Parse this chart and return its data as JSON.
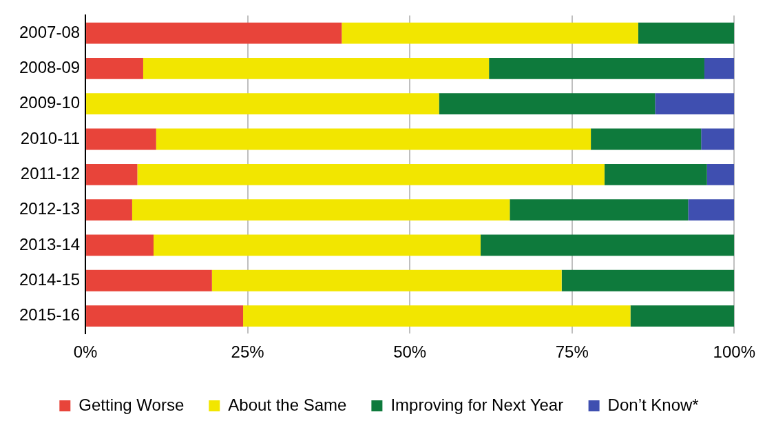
{
  "chart_data": {
    "type": "bar",
    "orientation": "horizontal",
    "stacked": true,
    "categories": [
      "2007-08",
      "2008-09",
      "2009-10",
      "2010-11",
      "2011-12",
      "2012-13",
      "2013-14",
      "2014-15",
      "2015-16"
    ],
    "series": [
      {
        "name": "Getting Worse",
        "color": "#e8443a",
        "values": [
          39.5,
          8.9,
          0,
          10.9,
          8.0,
          7.2,
          10.5,
          19.5,
          24.3
        ]
      },
      {
        "name": "About the Same",
        "color": "#f2e600",
        "values": [
          45.7,
          53.3,
          54.5,
          67.0,
          72.0,
          58.2,
          50.4,
          53.9,
          59.7
        ]
      },
      {
        "name": "Improving for Next Year",
        "color": "#0e7a3c",
        "values": [
          14.8,
          33.2,
          33.3,
          17.0,
          15.8,
          27.5,
          39.1,
          26.6,
          16.0
        ]
      },
      {
        "name": "Don’t Know*",
        "color": "#3f4fb0",
        "values": [
          0,
          4.6,
          12.2,
          5.1,
          4.2,
          7.1,
          0,
          0,
          0
        ]
      }
    ],
    "xlim": [
      0,
      100
    ],
    "xticks": [
      {
        "value": 0,
        "label": "0%"
      },
      {
        "value": 25,
        "label": "25%"
      },
      {
        "value": 50,
        "label": "50%"
      },
      {
        "value": 75,
        "label": "75%"
      },
      {
        "value": 100,
        "label": "100%"
      }
    ],
    "grid": "x",
    "legend": "bottom"
  }
}
